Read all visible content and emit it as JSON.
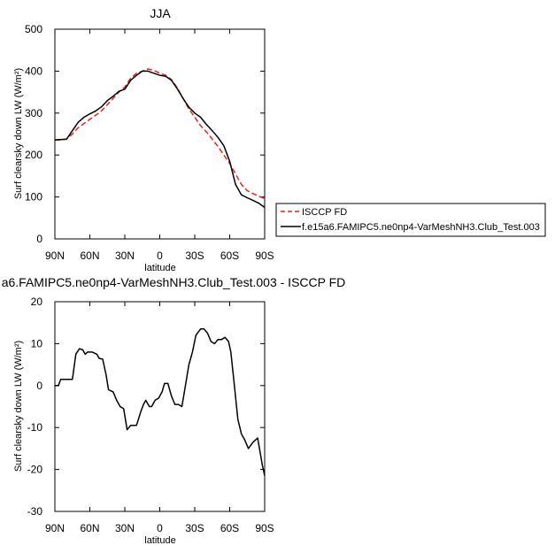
{
  "chart_data": [
    {
      "type": "line",
      "title": "JJA",
      "xlabel": "latitude",
      "ylabel": "Surf clearsky down LW (W/m²)",
      "xlim": [
        -90,
        90
      ],
      "ylim": [
        0,
        500
      ],
      "xticks": [
        -90,
        -60,
        -30,
        0,
        30,
        60,
        90
      ],
      "xtick_labels": [
        "90N",
        "60N",
        "30N",
        "0",
        "30S",
        "60S",
        "90S"
      ],
      "yticks": [
        0,
        100,
        200,
        300,
        400,
        500
      ],
      "ytick_labels": [
        "0",
        "100",
        "200",
        "300",
        "400",
        "500"
      ],
      "legend": [
        "ISCCP FD",
        "f.e15a6.FAMIPC5.ne0np4-VarMeshNH3.Club_Test.003"
      ],
      "series": [
        {
          "name": "ISCCP FD",
          "style": "dashed",
          "color": "#e8221b",
          "x": [
            -90,
            -85,
            -80,
            -75,
            -70,
            -65,
            -60,
            -55,
            -50,
            -45,
            -40,
            -35,
            -30,
            -25,
            -20,
            -15,
            -10,
            -5,
            0,
            5,
            10,
            15,
            20,
            25,
            30,
            35,
            40,
            45,
            50,
            55,
            60,
            65,
            70,
            75,
            80,
            85,
            90
          ],
          "y": [
            236,
            236,
            238,
            250,
            265,
            275,
            285,
            295,
            305,
            320,
            335,
            350,
            362,
            383,
            395,
            400,
            405,
            402,
            395,
            390,
            380,
            360,
            335,
            310,
            290,
            270,
            255,
            238,
            220,
            200,
            180,
            155,
            130,
            115,
            108,
            102,
            96
          ]
        },
        {
          "name": "f.e15a6.FAMIPC5.ne0np4-VarMeshNH3.Club_Test.003",
          "style": "solid",
          "color": "#000000",
          "x": [
            -90,
            -85,
            -80,
            -75,
            -70,
            -65,
            -60,
            -55,
            -50,
            -45,
            -40,
            -35,
            -30,
            -25,
            -20,
            -15,
            -10,
            -5,
            0,
            5,
            10,
            15,
            20,
            25,
            30,
            35,
            40,
            45,
            50,
            55,
            60,
            65,
            70,
            75,
            80,
            85,
            90
          ],
          "y": [
            236,
            237,
            238,
            258,
            278,
            290,
            298,
            305,
            315,
            330,
            340,
            352,
            357,
            378,
            390,
            400,
            400,
            395,
            390,
            388,
            378,
            358,
            335,
            314,
            300,
            290,
            273,
            258,
            242,
            222,
            185,
            130,
            105,
            98,
            92,
            85,
            75
          ]
        }
      ]
    },
    {
      "type": "line",
      "title": "a6.FAMIPC5.ne0np4-VarMeshNH3.Club_Test.003 - ISCCP FD",
      "xlabel": "latitude",
      "ylabel": "Surf clearsky down LW (W/m²)",
      "xlim": [
        -90,
        90
      ],
      "ylim": [
        -30,
        20
      ],
      "xticks": [
        -90,
        -60,
        -30,
        0,
        30,
        60,
        90
      ],
      "xtick_labels": [
        "90N",
        "60N",
        "30N",
        "0",
        "30S",
        "60S",
        "90S"
      ],
      "yticks": [
        -30,
        -20,
        -10,
        0,
        10,
        20
      ],
      "ytick_labels": [
        "-30",
        "-20",
        "-10",
        "0",
        "10",
        "20"
      ],
      "series": [
        {
          "name": "difference",
          "style": "solid",
          "color": "#000000",
          "x": [
            -90,
            -87,
            -85,
            -80,
            -75,
            -72,
            -69,
            -66,
            -64,
            -62,
            -58,
            -54,
            -52,
            -49,
            -46,
            -44,
            -40,
            -37,
            -34,
            -31,
            -28,
            -25,
            -22,
            -20,
            -16,
            -14,
            -12,
            -9,
            -7,
            -4,
            -1,
            2,
            4,
            7,
            10,
            13,
            16,
            19,
            22,
            25,
            28,
            31,
            35,
            38,
            41,
            44,
            47,
            50,
            53,
            56,
            59,
            61,
            64,
            67,
            70,
            73,
            76,
            80,
            84,
            88,
            90
          ],
          "y": [
            0,
            0,
            1.5,
            1.5,
            1.5,
            7.5,
            8.8,
            8.5,
            7.5,
            8,
            8,
            7.5,
            6.5,
            6.3,
            2.5,
            -1,
            -1.5,
            -3.5,
            -5,
            -5.5,
            -10.5,
            -9.5,
            -9.5,
            -9.5,
            -6,
            -4.5,
            -3.5,
            -5,
            -5,
            -3.5,
            -3,
            -1.5,
            0.5,
            0.5,
            -2.5,
            -4.5,
            -4.5,
            -5,
            0,
            5,
            8,
            12,
            13.5,
            13.5,
            12.5,
            10.5,
            10,
            11,
            11,
            11.5,
            10.5,
            8,
            0,
            -8,
            -11.5,
            -13,
            -15,
            -13.5,
            -12.5,
            -19,
            -21.5
          ]
        }
      ]
    }
  ]
}
